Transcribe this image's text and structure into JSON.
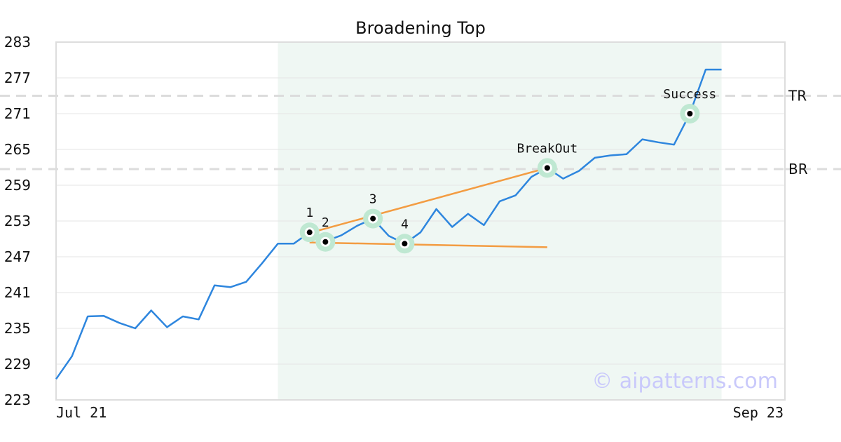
{
  "chart_data": {
    "type": "line",
    "title": "Broadening Top",
    "xlabel": "",
    "ylabel": "",
    "x_tick_labels": [
      "Jul 21",
      "Sep 23"
    ],
    "y_ticks": [
      223,
      229,
      235,
      241,
      247,
      253,
      259,
      265,
      271,
      277,
      283
    ],
    "ylim": [
      223,
      283
    ],
    "grid": true,
    "watermark": "© aipatterns.com",
    "highlight_range": [
      14,
      42
    ],
    "series": [
      {
        "color": "#2e86de",
        "values": [
          226.5,
          230.3,
          237.0,
          237.1,
          235.9,
          235.0,
          238.0,
          235.2,
          237.0,
          236.5,
          242.2,
          241.9,
          242.8,
          245.9,
          249.2,
          249.2,
          251.1,
          249.6,
          250.6,
          252.2,
          253.4,
          250.5,
          249.2,
          251.1,
          255.0,
          252.0,
          254.2,
          252.3,
          256.3,
          257.3,
          260.4,
          261.9,
          260.1,
          261.4,
          263.6,
          264.0,
          264.2,
          266.7,
          266.2,
          265.8,
          271.0,
          278.4,
          278.4
        ]
      }
    ],
    "reference_lines": [
      {
        "label": "TR",
        "value": 274.0
      },
      {
        "label": "BR",
        "value": 261.7
      }
    ],
    "trendlines": [
      {
        "color": "#f39c42",
        "from": [
          16,
          251.0
        ],
        "to": [
          31,
          261.9
        ]
      },
      {
        "color": "#f39c42",
        "from": [
          16,
          249.4
        ],
        "to": [
          31,
          248.6
        ]
      }
    ],
    "annotations": [
      {
        "label": "1",
        "index": 16,
        "value": 251.1
      },
      {
        "label": "2",
        "index": 17,
        "value": 249.5
      },
      {
        "label": "3",
        "index": 20,
        "value": 253.4
      },
      {
        "label": "4",
        "index": 22,
        "value": 249.2
      },
      {
        "label": "BreakOut",
        "index": 31,
        "value": 261.9
      },
      {
        "label": "Success",
        "index": 40,
        "value": 271.0
      }
    ],
    "colors": {
      "highlight": "#eff7f3",
      "grid": "#e6e6e6",
      "reference": "#dcdcdc",
      "marker_halo": "#bfe8d2",
      "watermark": "#c9c9fb"
    }
  }
}
